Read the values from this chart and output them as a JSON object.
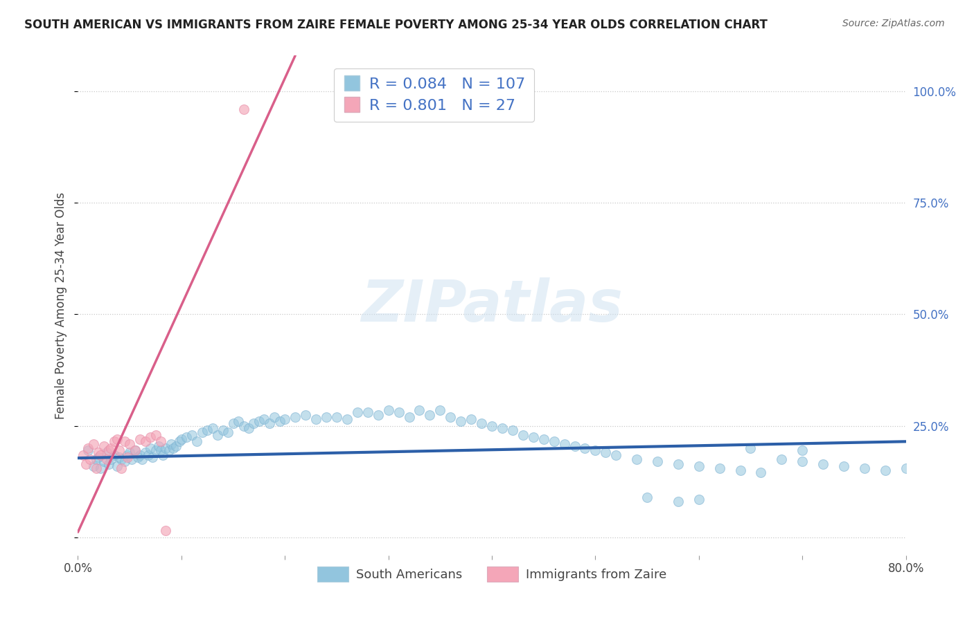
{
  "title": "SOUTH AMERICAN VS IMMIGRANTS FROM ZAIRE FEMALE POVERTY AMONG 25-34 YEAR OLDS CORRELATION CHART",
  "source": "Source: ZipAtlas.com",
  "ylabel": "Female Poverty Among 25-34 Year Olds",
  "xlim": [
    0.0,
    0.8
  ],
  "ylim": [
    -0.04,
    1.08
  ],
  "xticks": [
    0.0,
    0.1,
    0.2,
    0.3,
    0.4,
    0.5,
    0.6,
    0.7,
    0.8
  ],
  "xticklabels": [
    "0.0%",
    "",
    "",
    "",
    "",
    "",
    "",
    "",
    "80.0%"
  ],
  "yticks_right": [
    0.0,
    0.25,
    0.5,
    0.75,
    1.0
  ],
  "yticklabels_right": [
    "",
    "25.0%",
    "50.0%",
    "75.0%",
    "100.0%"
  ],
  "legend_r1": "0.084",
  "legend_n1": "107",
  "legend_r2": "0.801",
  "legend_n2": "27",
  "blue_color": "#92c5de",
  "pink_color": "#f4a6b8",
  "blue_line_color": "#2c5fa8",
  "pink_line_color": "#d95f8a",
  "legend_color": "#4472c4",
  "text_color": "#444444",
  "background_color": "#ffffff",
  "watermark_color": "#cce0f0",
  "blue_scatter_x": [
    0.01,
    0.015,
    0.018,
    0.02,
    0.022,
    0.025,
    0.028,
    0.03,
    0.032,
    0.035,
    0.038,
    0.04,
    0.042,
    0.045,
    0.048,
    0.05,
    0.052,
    0.055,
    0.058,
    0.06,
    0.062,
    0.065,
    0.068,
    0.07,
    0.072,
    0.075,
    0.078,
    0.08,
    0.082,
    0.085,
    0.088,
    0.09,
    0.092,
    0.095,
    0.098,
    0.1,
    0.105,
    0.11,
    0.115,
    0.12,
    0.125,
    0.13,
    0.135,
    0.14,
    0.145,
    0.15,
    0.155,
    0.16,
    0.165,
    0.17,
    0.175,
    0.18,
    0.185,
    0.19,
    0.195,
    0.2,
    0.21,
    0.22,
    0.23,
    0.24,
    0.25,
    0.26,
    0.27,
    0.28,
    0.29,
    0.3,
    0.31,
    0.32,
    0.33,
    0.34,
    0.35,
    0.36,
    0.37,
    0.38,
    0.39,
    0.4,
    0.41,
    0.42,
    0.43,
    0.44,
    0.45,
    0.46,
    0.47,
    0.48,
    0.49,
    0.5,
    0.51,
    0.52,
    0.54,
    0.56,
    0.58,
    0.6,
    0.62,
    0.64,
    0.66,
    0.68,
    0.7,
    0.72,
    0.74,
    0.76,
    0.78,
    0.8,
    0.55,
    0.58,
    0.6,
    0.65,
    0.7
  ],
  "blue_scatter_y": [
    0.195,
    0.16,
    0.175,
    0.18,
    0.155,
    0.17,
    0.19,
    0.165,
    0.175,
    0.185,
    0.16,
    0.18,
    0.175,
    0.17,
    0.185,
    0.19,
    0.175,
    0.195,
    0.18,
    0.185,
    0.175,
    0.19,
    0.185,
    0.2,
    0.18,
    0.195,
    0.205,
    0.195,
    0.185,
    0.2,
    0.195,
    0.21,
    0.2,
    0.205,
    0.215,
    0.22,
    0.225,
    0.23,
    0.215,
    0.235,
    0.24,
    0.245,
    0.23,
    0.24,
    0.235,
    0.255,
    0.26,
    0.25,
    0.245,
    0.255,
    0.26,
    0.265,
    0.255,
    0.27,
    0.26,
    0.265,
    0.27,
    0.275,
    0.265,
    0.27,
    0.27,
    0.265,
    0.28,
    0.28,
    0.275,
    0.285,
    0.28,
    0.27,
    0.285,
    0.275,
    0.285,
    0.27,
    0.26,
    0.265,
    0.255,
    0.25,
    0.245,
    0.24,
    0.23,
    0.225,
    0.22,
    0.215,
    0.21,
    0.205,
    0.2,
    0.195,
    0.19,
    0.185,
    0.175,
    0.17,
    0.165,
    0.16,
    0.155,
    0.15,
    0.145,
    0.175,
    0.17,
    0.165,
    0.16,
    0.155,
    0.15,
    0.155,
    0.09,
    0.08,
    0.085,
    0.2,
    0.195
  ],
  "pink_scatter_x": [
    0.005,
    0.008,
    0.01,
    0.012,
    0.015,
    0.018,
    0.02,
    0.022,
    0.025,
    0.028,
    0.03,
    0.032,
    0.035,
    0.038,
    0.04,
    0.042,
    0.045,
    0.048,
    0.05,
    0.055,
    0.06,
    0.065,
    0.07,
    0.075,
    0.08,
    0.085,
    0.16
  ],
  "pink_scatter_y": [
    0.185,
    0.165,
    0.2,
    0.175,
    0.21,
    0.155,
    0.19,
    0.185,
    0.205,
    0.175,
    0.195,
    0.2,
    0.215,
    0.22,
    0.195,
    0.155,
    0.215,
    0.18,
    0.21,
    0.195,
    0.22,
    0.215,
    0.225,
    0.23,
    0.215,
    0.015,
    0.96
  ],
  "blue_trend_x": [
    0.0,
    0.8
  ],
  "blue_trend_y": [
    0.178,
    0.215
  ],
  "pink_trend_x": [
    0.0,
    0.21
  ],
  "pink_trend_y": [
    0.012,
    1.08
  ],
  "sa_label": "South Americans",
  "zi_label": "Immigrants from Zaire"
}
